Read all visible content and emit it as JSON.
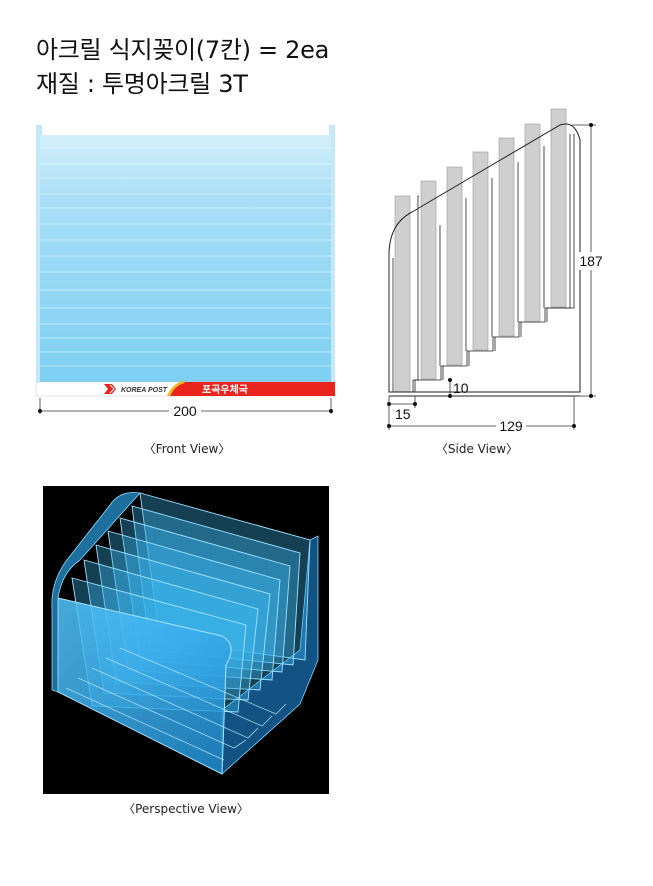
{
  "heading": {
    "line1": "아크릴 식지꽂이(7칸) = 2ea",
    "line2": "재질 : 투명아크릴 3T"
  },
  "front_view": {
    "caption": "〈Front View〉",
    "width_label": "200",
    "brand_text": "KOREA POST",
    "office_text": "포곡우체국",
    "colors": {
      "panel": "#8fd3f4",
      "banner": "#e8241c",
      "logo": "#e8241c"
    }
  },
  "side_view": {
    "caption": "〈Side View〉",
    "height_label": "187",
    "step_label": "10",
    "base_label": "15",
    "depth_label": "129"
  },
  "perspective_view": {
    "caption": "〈Perspective View〉",
    "colors": {
      "background": "#000000",
      "acrylic": "#3fc0ff"
    }
  }
}
